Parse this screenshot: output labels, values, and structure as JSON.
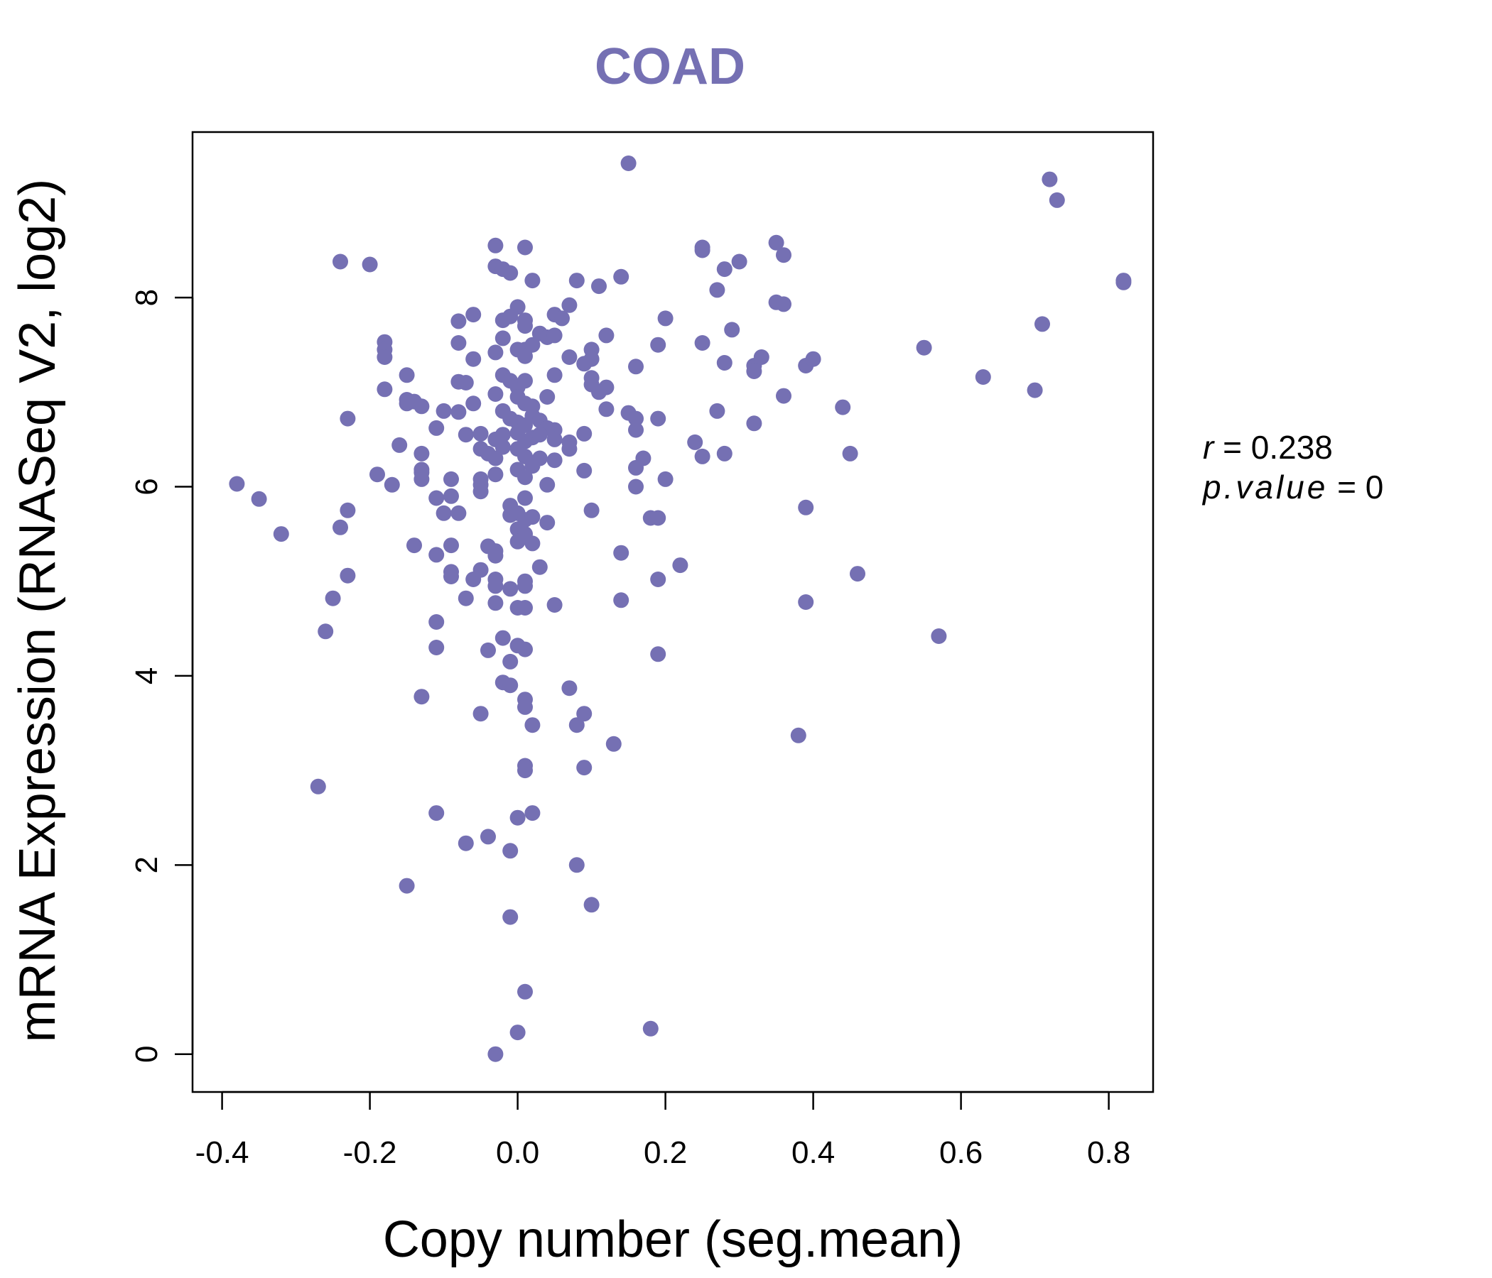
{
  "chart_data": {
    "type": "scatter",
    "title": "COAD",
    "xlabel": "Copy number (seg.mean)",
    "ylabel": "mRNA Expression (RNASeq V2, log2)",
    "xlim": [
      -0.44,
      0.86
    ],
    "ylim": [
      -0.4,
      9.75
    ],
    "x_ticks": [
      -0.4,
      -0.2,
      0.0,
      0.2,
      0.4,
      0.6,
      0.8
    ],
    "x_tick_labels": [
      "-0.4",
      "-0.2",
      "0.0",
      "0.2",
      "0.4",
      "0.6",
      "0.8"
    ],
    "y_ticks": [
      0,
      2,
      4,
      6,
      8
    ],
    "y_tick_labels": [
      "0",
      "2",
      "4",
      "6",
      "8"
    ],
    "point_color": "#7570b3",
    "stats": {
      "r_label": "r",
      "r_value": "0.238",
      "p_label": "p.value",
      "p_value": "0"
    },
    "points": [
      [
        0.15,
        9.42
      ],
      [
        0.72,
        9.25
      ],
      [
        0.73,
        9.03
      ],
      [
        0.82,
        8.16
      ],
      [
        0.82,
        8.18
      ],
      [
        -0.03,
        8.55
      ],
      [
        0.01,
        8.53
      ],
      [
        0.25,
        8.53
      ],
      [
        0.25,
        8.5
      ],
      [
        0.35,
        8.58
      ],
      [
        0.36,
        8.45
      ],
      [
        -0.24,
        8.38
      ],
      [
        -0.2,
        8.35
      ],
      [
        0.3,
        8.38
      ],
      [
        -0.03,
        8.33
      ],
      [
        -0.02,
        8.3
      ],
      [
        -0.01,
        8.26
      ],
      [
        0.02,
        8.18
      ],
      [
        0.08,
        8.18
      ],
      [
        0.11,
        8.12
      ],
      [
        0.14,
        8.22
      ],
      [
        0.28,
        8.3
      ],
      [
        0.27,
        8.08
      ],
      [
        0.35,
        7.95
      ],
      [
        0.36,
        7.93
      ],
      [
        -0.06,
        7.82
      ],
      [
        -0.08,
        7.75
      ],
      [
        -0.02,
        7.76
      ],
      [
        -0.01,
        7.8
      ],
      [
        0.0,
        7.9
      ],
      [
        0.01,
        7.76
      ],
      [
        0.01,
        7.7
      ],
      [
        0.05,
        7.82
      ],
      [
        0.06,
        7.78
      ],
      [
        0.07,
        7.92
      ],
      [
        0.2,
        7.78
      ],
      [
        0.29,
        7.66
      ],
      [
        0.03,
        7.62
      ],
      [
        0.04,
        7.58
      ],
      [
        0.05,
        7.6
      ],
      [
        0.12,
        7.6
      ],
      [
        -0.18,
        7.53
      ],
      [
        -0.18,
        7.45
      ],
      [
        -0.18,
        7.37
      ],
      [
        -0.08,
        7.52
      ],
      [
        -0.02,
        7.57
      ],
      [
        0.01,
        7.45
      ],
      [
        0.02,
        7.5
      ],
      [
        0.1,
        7.45
      ],
      [
        0.19,
        7.5
      ],
      [
        0.25,
        7.52
      ],
      [
        0.71,
        7.72
      ],
      [
        0.55,
        7.47
      ],
      [
        -0.06,
        7.35
      ],
      [
        -0.03,
        7.42
      ],
      [
        0.0,
        7.45
      ],
      [
        0.01,
        7.38
      ],
      [
        0.07,
        7.37
      ],
      [
        0.1,
        7.35
      ],
      [
        0.09,
        7.3
      ],
      [
        0.16,
        7.27
      ],
      [
        0.28,
        7.31
      ],
      [
        0.32,
        7.28
      ],
      [
        0.33,
        7.37
      ],
      [
        0.32,
        7.22
      ],
      [
        0.39,
        7.28
      ],
      [
        0.4,
        7.35
      ],
      [
        -0.15,
        7.18
      ],
      [
        -0.18,
        7.03
      ],
      [
        -0.08,
        7.11
      ],
      [
        -0.07,
        7.1
      ],
      [
        -0.02,
        7.18
      ],
      [
        -0.01,
        7.12
      ],
      [
        0.0,
        7.05
      ],
      [
        0.01,
        7.12
      ],
      [
        0.05,
        7.18
      ],
      [
        0.1,
        7.15
      ],
      [
        0.1,
        7.08
      ],
      [
        0.12,
        7.05
      ],
      [
        0.11,
        7.0
      ],
      [
        0.63,
        7.16
      ],
      [
        0.7,
        7.02
      ],
      [
        0.36,
        6.96
      ],
      [
        -0.15,
        6.92
      ],
      [
        -0.14,
        6.9
      ],
      [
        -0.13,
        6.85
      ],
      [
        -0.15,
        6.88
      ],
      [
        -0.1,
        6.8
      ],
      [
        -0.08,
        6.79
      ],
      [
        -0.06,
        6.88
      ],
      [
        -0.03,
        6.98
      ],
      [
        0.0,
        6.95
      ],
      [
        0.01,
        6.88
      ],
      [
        0.02,
        6.85
      ],
      [
        0.04,
        6.95
      ],
      [
        0.12,
        6.82
      ],
      [
        0.15,
        6.78
      ],
      [
        0.16,
        6.72
      ],
      [
        0.19,
        6.72
      ],
      [
        0.27,
        6.8
      ],
      [
        0.44,
        6.84
      ],
      [
        -0.23,
        6.72
      ],
      [
        -0.02,
        6.8
      ],
      [
        -0.01,
        6.72
      ],
      [
        0.0,
        6.68
      ],
      [
        0.01,
        6.65
      ],
      [
        0.02,
        6.75
      ],
      [
        0.03,
        6.7
      ],
      [
        0.04,
        6.62
      ],
      [
        0.05,
        6.6
      ],
      [
        0.32,
        6.67
      ],
      [
        -0.11,
        6.62
      ],
      [
        -0.07,
        6.55
      ],
      [
        -0.05,
        6.56
      ],
      [
        -0.03,
        6.5
      ],
      [
        -0.02,
        6.55
      ],
      [
        0.0,
        6.57
      ],
      [
        0.01,
        6.48
      ],
      [
        0.02,
        6.52
      ],
      [
        0.03,
        6.55
      ],
      [
        0.05,
        6.5
      ],
      [
        0.07,
        6.47
      ],
      [
        0.09,
        6.56
      ],
      [
        0.16,
        6.6
      ],
      [
        0.24,
        6.47
      ],
      [
        -0.16,
        6.44
      ],
      [
        -0.13,
        6.35
      ],
      [
        -0.05,
        6.4
      ],
      [
        -0.04,
        6.35
      ],
      [
        -0.02,
        6.42
      ],
      [
        -0.03,
        6.3
      ],
      [
        0.0,
        6.4
      ],
      [
        0.01,
        6.32
      ],
      [
        0.03,
        6.3
      ],
      [
        0.05,
        6.28
      ],
      [
        0.07,
        6.4
      ],
      [
        0.17,
        6.3
      ],
      [
        0.25,
        6.32
      ],
      [
        0.28,
        6.35
      ],
      [
        0.45,
        6.35
      ],
      [
        -0.19,
        6.13
      ],
      [
        -0.17,
        6.02
      ],
      [
        -0.13,
        6.18
      ],
      [
        -0.13,
        6.15
      ],
      [
        -0.13,
        6.08
      ],
      [
        -0.09,
        6.08
      ],
      [
        -0.05,
        6.08
      ],
      [
        -0.05,
        6.02
      ],
      [
        -0.03,
        6.13
      ],
      [
        0.0,
        6.18
      ],
      [
        0.01,
        6.1
      ],
      [
        0.02,
        6.22
      ],
      [
        0.04,
        6.02
      ],
      [
        0.09,
        6.17
      ],
      [
        0.16,
        6.2
      ],
      [
        0.16,
        6.0
      ],
      [
        0.2,
        6.08
      ],
      [
        -0.38,
        6.03
      ],
      [
        -0.35,
        5.87
      ],
      [
        -0.11,
        5.88
      ],
      [
        -0.09,
        5.9
      ],
      [
        -0.05,
        5.95
      ],
      [
        -0.01,
        5.8
      ],
      [
        0.01,
        5.88
      ],
      [
        -0.23,
        5.75
      ],
      [
        -0.1,
        5.72
      ],
      [
        -0.08,
        5.72
      ],
      [
        -0.01,
        5.7
      ],
      [
        0.0,
        5.72
      ],
      [
        0.01,
        5.65
      ],
      [
        0.02,
        5.68
      ],
      [
        0.04,
        5.62
      ],
      [
        0.1,
        5.75
      ],
      [
        0.18,
        5.67
      ],
      [
        0.19,
        5.67
      ],
      [
        0.39,
        5.78
      ],
      [
        -0.32,
        5.5
      ],
      [
        -0.24,
        5.57
      ],
      [
        0.0,
        5.55
      ],
      [
        0.01,
        5.5
      ],
      [
        0.02,
        5.4
      ],
      [
        0.0,
        5.42
      ],
      [
        -0.14,
        5.38
      ],
      [
        -0.11,
        5.28
      ],
      [
        -0.09,
        5.38
      ],
      [
        -0.04,
        5.37
      ],
      [
        -0.03,
        5.32
      ],
      [
        -0.03,
        5.27
      ],
      [
        0.14,
        5.3
      ],
      [
        0.22,
        5.17
      ],
      [
        0.46,
        5.08
      ],
      [
        -0.23,
        5.06
      ],
      [
        -0.09,
        5.1
      ],
      [
        -0.09,
        5.05
      ],
      [
        -0.06,
        5.02
      ],
      [
        -0.05,
        5.12
      ],
      [
        -0.03,
        5.02
      ],
      [
        -0.03,
        4.95
      ],
      [
        -0.01,
        4.92
      ],
      [
        0.01,
        5.0
      ],
      [
        0.01,
        4.95
      ],
      [
        0.03,
        5.15
      ],
      [
        0.19,
        5.02
      ],
      [
        -0.25,
        4.82
      ],
      [
        -0.07,
        4.82
      ],
      [
        -0.03,
        4.77
      ],
      [
        0.0,
        4.72
      ],
      [
        0.01,
        4.72
      ],
      [
        0.05,
        4.75
      ],
      [
        0.14,
        4.8
      ],
      [
        0.39,
        4.78
      ],
      [
        -0.26,
        4.47
      ],
      [
        -0.11,
        4.57
      ],
      [
        -0.11,
        4.3
      ],
      [
        -0.02,
        4.4
      ],
      [
        -0.04,
        4.27
      ],
      [
        0.0,
        4.32
      ],
      [
        0.01,
        4.28
      ],
      [
        -0.01,
        4.15
      ],
      [
        0.19,
        4.23
      ],
      [
        0.57,
        4.42
      ],
      [
        -0.02,
        3.93
      ],
      [
        -0.01,
        3.9
      ],
      [
        0.07,
        3.87
      ],
      [
        -0.13,
        3.78
      ],
      [
        0.01,
        3.75
      ],
      [
        0.01,
        3.67
      ],
      [
        -0.05,
        3.6
      ],
      [
        0.09,
        3.6
      ],
      [
        0.02,
        3.48
      ],
      [
        0.08,
        3.48
      ],
      [
        0.38,
        3.37
      ],
      [
        0.13,
        3.28
      ],
      [
        0.01,
        3.05
      ],
      [
        0.01,
        3.0
      ],
      [
        0.09,
        3.03
      ],
      [
        -0.27,
        2.83
      ],
      [
        -0.11,
        2.55
      ],
      [
        0.0,
        2.5
      ],
      [
        0.02,
        2.55
      ],
      [
        -0.07,
        2.23
      ],
      [
        -0.04,
        2.3
      ],
      [
        -0.01,
        2.15
      ],
      [
        0.08,
        2.0
      ],
      [
        -0.15,
        1.78
      ],
      [
        0.1,
        1.58
      ],
      [
        -0.01,
        1.45
      ],
      [
        0.01,
        0.66
      ],
      [
        0.0,
        0.23
      ],
      [
        0.18,
        0.27
      ],
      [
        -0.03,
        0.0
      ]
    ]
  }
}
